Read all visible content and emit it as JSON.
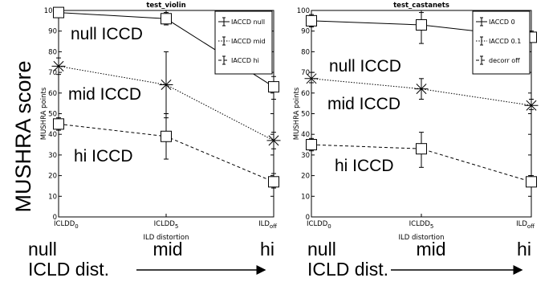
{
  "figure": {
    "y_caption": "MUSHRA score",
    "x_caption": "ICLD dist.",
    "axis_words": [
      "null",
      "mid",
      "hi"
    ]
  },
  "chart_data": [
    {
      "type": "line",
      "title": "test_violin",
      "xlabel": "ILD distortion",
      "ylabel": "MUSHRA points",
      "ylim": [
        0,
        100
      ],
      "grid": false,
      "legend_position": "top-right",
      "x_tick_labels": [
        {
          "base": "ICLDD",
          "sub": "0"
        },
        {
          "base": "ICLDD",
          "sub": "5"
        },
        {
          "base": "ILD",
          "sub": "off"
        }
      ],
      "y_ticks": [
        0,
        10,
        20,
        30,
        40,
        50,
        60,
        70,
        80,
        90,
        100
      ],
      "series": [
        {
          "name": "IACCD null",
          "values": [
            99,
            96,
            63
          ],
          "errors": [
            [
              99,
              99
            ],
            [
              93,
              99
            ],
            [
              57,
              68
            ]
          ],
          "marker": "square",
          "linestyle": "solid"
        },
        {
          "name": "IACCD mid",
          "values": [
            73,
            64,
            37
          ],
          "errors": [
            [
              69,
              77
            ],
            [
              48,
              80
            ],
            [
              33,
              41
            ]
          ],
          "marker": "star",
          "linestyle": "dotted"
        },
        {
          "name": "IACCD hi",
          "values": [
            45,
            39,
            17
          ],
          "errors": [
            [
              42,
              48
            ],
            [
              28,
              50
            ],
            [
              14,
              21
            ]
          ],
          "marker": "square",
          "linestyle": "dashed"
        }
      ],
      "annotations": [
        "null ICCD",
        "mid ICCD",
        "hi ICCD"
      ]
    },
    {
      "type": "line",
      "title": "test_castanets",
      "xlabel": "ILD distortion",
      "ylabel": "MUSHRA points",
      "ylim": [
        0,
        100
      ],
      "grid": false,
      "legend_position": "top-right",
      "x_tick_labels": [
        {
          "base": "ICLDD",
          "sub": "0"
        },
        {
          "base": "ICLDD",
          "sub": "5"
        },
        {
          "base": "ILD",
          "sub": "off"
        }
      ],
      "y_ticks": [
        0,
        10,
        20,
        30,
        40,
        50,
        60,
        70,
        80,
        90,
        100
      ],
      "series": [
        {
          "name": "IACCD 0",
          "values": [
            95,
            93,
            87
          ],
          "errors": [
            [
              92,
              98
            ],
            [
              84,
              99
            ],
            [
              85,
              90
            ]
          ],
          "marker": "square",
          "linestyle": "solid"
        },
        {
          "name": "IACCD 0.1",
          "values": [
            67,
            62,
            54
          ],
          "errors": [
            [
              65,
              70
            ],
            [
              57,
              67
            ],
            [
              52,
              57
            ]
          ],
          "marker": "star",
          "linestyle": "dotted"
        },
        {
          "name": "decorr off",
          "values": [
            35,
            33,
            17
          ],
          "errors": [
            [
              32,
              38
            ],
            [
              24,
              41
            ],
            [
              15,
              20
            ]
          ],
          "marker": "square",
          "linestyle": "dashed"
        }
      ],
      "annotations": [
        "null ICCD",
        "mid ICCD",
        "hi ICCD"
      ]
    }
  ]
}
